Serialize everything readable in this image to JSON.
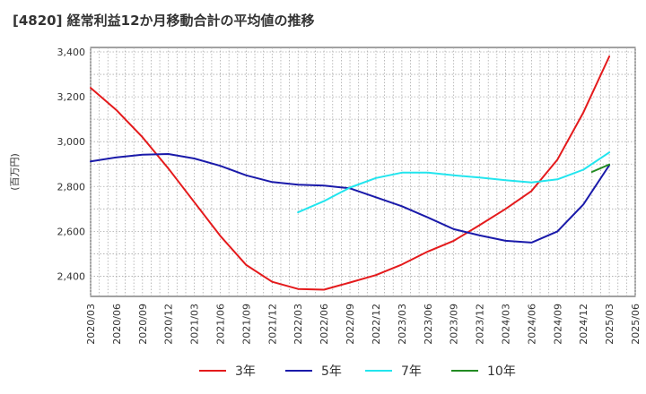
{
  "chart_data": {
    "type": "line",
    "title": "[4820]  経常利益12か月移動合計の平均値の推移",
    "ylabel": "(百万円)",
    "xlabel": "",
    "ylim": [
      2310,
      3420
    ],
    "yticks": [
      2400,
      2600,
      2800,
      3000,
      3200,
      3400
    ],
    "ytick_labels": [
      "2,400",
      "2,600",
      "2,800",
      "3,000",
      "3,200",
      "3,400"
    ],
    "x_ticks": [
      "2020/03",
      "2020/06",
      "2020/09",
      "2020/12",
      "2021/03",
      "2021/06",
      "2021/09",
      "2021/12",
      "2022/03",
      "2022/06",
      "2022/09",
      "2022/12",
      "2023/03",
      "2023/06",
      "2023/09",
      "2023/12",
      "2024/03",
      "2024/06",
      "2024/09",
      "2024/12",
      "2025/03",
      "2025/06"
    ],
    "grid": true,
    "legend_position": "bottom",
    "series": [
      {
        "name": "3年",
        "color": "#e41a1c",
        "x": [
          "2020/03",
          "2020/06",
          "2020/09",
          "2020/12",
          "2021/03",
          "2021/06",
          "2021/09",
          "2021/12",
          "2022/03",
          "2022/06",
          "2022/09",
          "2022/12",
          "2023/03",
          "2023/06",
          "2023/09",
          "2023/12",
          "2024/03",
          "2024/06",
          "2024/09",
          "2024/12",
          "2025/03"
        ],
        "values": [
          3240,
          3140,
          3020,
          2880,
          2730,
          2580,
          2450,
          2375,
          2343,
          2340,
          2372,
          2405,
          2452,
          2510,
          2558,
          2628,
          2700,
          2780,
          2920,
          3130,
          3380
        ]
      },
      {
        "name": "5年",
        "color": "#1a1aaa",
        "x": [
          "2020/03",
          "2020/06",
          "2020/09",
          "2020/12",
          "2021/03",
          "2021/06",
          "2021/09",
          "2021/12",
          "2022/03",
          "2022/06",
          "2022/09",
          "2022/12",
          "2023/03",
          "2023/06",
          "2023/09",
          "2023/12",
          "2024/03",
          "2024/06",
          "2024/09",
          "2024/12",
          "2025/03"
        ],
        "values": [
          2912,
          2930,
          2942,
          2945,
          2925,
          2892,
          2850,
          2820,
          2808,
          2804,
          2792,
          2752,
          2712,
          2662,
          2610,
          2582,
          2558,
          2550,
          2600,
          2720,
          2895
        ]
      },
      {
        "name": "7年",
        "color": "#22e5ee",
        "x": [
          "2022/03",
          "2022/06",
          "2022/09",
          "2022/12",
          "2023/03",
          "2023/06",
          "2023/09",
          "2023/12",
          "2024/03",
          "2024/06",
          "2024/09",
          "2024/12",
          "2025/03"
        ],
        "values": [
          2685,
          2735,
          2795,
          2838,
          2862,
          2862,
          2850,
          2840,
          2828,
          2818,
          2832,
          2875,
          2952
        ]
      },
      {
        "name": "10年",
        "color": "#228b22",
        "x": [
          "2025/01",
          "2025/03"
        ],
        "values": [
          2865,
          2898
        ]
      }
    ]
  }
}
